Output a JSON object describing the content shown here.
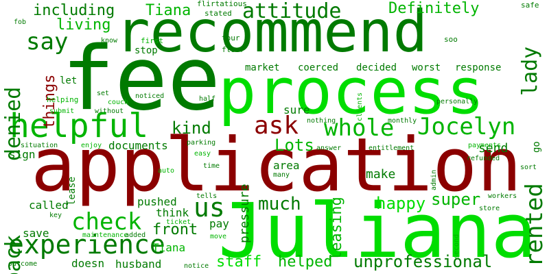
{
  "colors": {
    "background": "#ffffff",
    "dark_red": "#8b0000",
    "dark_green": "#007a00",
    "green": "#00b400",
    "bright_green": "#00dd00"
  },
  "words": [
    {
      "text": "fee",
      "color": "#007a00"
    },
    {
      "text": "application",
      "color": "#8b0000"
    },
    {
      "text": "Juliana",
      "color": "#00dd00"
    },
    {
      "text": "process",
      "color": "#00dd00"
    },
    {
      "text": "recommend",
      "color": "#007a00"
    },
    {
      "text": "helpful",
      "color": "#00b400"
    },
    {
      "text": "experience",
      "color": "#007a00"
    },
    {
      "text": "Jocelyn",
      "color": "#00b400"
    },
    {
      "text": "whole",
      "color": "#00b400"
    },
    {
      "text": "ask",
      "color": "#8b0000"
    },
    {
      "text": "check",
      "color": "#00b400"
    },
    {
      "text": "rented",
      "color": "#007a00"
    },
    {
      "text": "us",
      "color": "#007a00"
    },
    {
      "text": "denied",
      "color": "#007a00"
    },
    {
      "text": "back",
      "color": "#007a00"
    },
    {
      "text": "say",
      "color": "#007a00"
    },
    {
      "text": "attitude",
      "color": "#007a00"
    },
    {
      "text": "lady",
      "color": "#007a00"
    },
    {
      "text": "unprofessional",
      "color": "#007a00"
    },
    {
      "text": "Definitely",
      "color": "#00b400"
    },
    {
      "text": "including",
      "color": "#007a00"
    },
    {
      "text": "Tiana",
      "color": "#00b400"
    },
    {
      "text": "living",
      "color": "#00b400"
    },
    {
      "text": "kind",
      "color": "#007a00"
    },
    {
      "text": "Lots",
      "color": "#00b400"
    },
    {
      "text": "much",
      "color": "#007a00"
    },
    {
      "text": "happy",
      "color": "#00dd00"
    },
    {
      "text": "super",
      "color": "#00b400"
    },
    {
      "text": "staff",
      "color": "#00dd00"
    },
    {
      "text": "helped",
      "color": "#00b400"
    },
    {
      "text": "front",
      "color": "#007a00"
    },
    {
      "text": "things",
      "color": "#8b0000"
    },
    {
      "text": "leasing",
      "color": "#00b400"
    },
    {
      "text": "pressure",
      "color": "#007a00"
    },
    {
      "text": "make",
      "color": "#007a00"
    },
    {
      "text": "send",
      "color": "#007a00"
    },
    {
      "text": "documents",
      "color": "#007a00"
    },
    {
      "text": "Tiana",
      "color": "#00b400"
    },
    {
      "text": "husband",
      "color": "#007a00"
    },
    {
      "text": "doesn",
      "color": "#007a00"
    },
    {
      "text": "save",
      "color": "#007a00"
    },
    {
      "text": "called",
      "color": "#007a00"
    },
    {
      "text": "pushed",
      "color": "#007a00"
    },
    {
      "text": "think",
      "color": "#007a00"
    },
    {
      "text": "pay",
      "color": "#007a00"
    },
    {
      "text": "sure",
      "color": "#007a00"
    },
    {
      "text": "area",
      "color": "#007a00"
    },
    {
      "text": "sign",
      "color": "#007a00"
    },
    {
      "text": "lease",
      "color": "#007a00"
    },
    {
      "text": "stop",
      "color": "#007a00"
    },
    {
      "text": "let",
      "color": "#007a00"
    },
    {
      "text": "market",
      "color": "#007a00"
    },
    {
      "text": "coerced",
      "color": "#007a00"
    },
    {
      "text": "decided",
      "color": "#007a00"
    },
    {
      "text": "worst",
      "color": "#007a00"
    },
    {
      "text": "response",
      "color": "#007a00"
    },
    {
      "text": "go",
      "color": "#007a00"
    },
    {
      "text": "flirtatious",
      "color": "#007a00"
    },
    {
      "text": "stated",
      "color": "#007a00"
    },
    {
      "text": "safe",
      "color": "#007a00"
    },
    {
      "text": "fob",
      "color": "#007a00"
    },
    {
      "text": "know",
      "color": "#007a00"
    },
    {
      "text": "first",
      "color": "#00b400"
    },
    {
      "text": "tour",
      "color": "#007a00"
    },
    {
      "text": "floor",
      "color": "#007a00"
    },
    {
      "text": "soo",
      "color": "#007a00"
    },
    {
      "text": "helping",
      "color": "#00b400"
    },
    {
      "text": "set",
      "color": "#007a00"
    },
    {
      "text": "noticed",
      "color": "#007a00"
    },
    {
      "text": "half",
      "color": "#007a00"
    },
    {
      "text": "submit",
      "color": "#00b400"
    },
    {
      "text": "couch",
      "color": "#00b400"
    },
    {
      "text": "without",
      "color": "#007a00"
    },
    {
      "text": "nothing",
      "color": "#007a00"
    },
    {
      "text": "monthly",
      "color": "#007a00"
    },
    {
      "text": "clients",
      "color": "#00b400"
    },
    {
      "text": "personally",
      "color": "#007a00"
    },
    {
      "text": "situation",
      "color": "#007a00"
    },
    {
      "text": "enjoy",
      "color": "#00b400"
    },
    {
      "text": "parking",
      "color": "#007a00"
    },
    {
      "text": "answer",
      "color": "#007a00"
    },
    {
      "text": "entitlement",
      "color": "#007a00"
    },
    {
      "text": "payments",
      "color": "#00b400"
    },
    {
      "text": "easy",
      "color": "#00b400"
    },
    {
      "text": "time",
      "color": "#007a00"
    },
    {
      "text": "many",
      "color": "#007a00"
    },
    {
      "text": "auto",
      "color": "#00b400"
    },
    {
      "text": "admin",
      "color": "#007a00"
    },
    {
      "text": "refunded",
      "color": "#007a00"
    },
    {
      "text": "sort",
      "color": "#007a00"
    },
    {
      "text": "workers",
      "color": "#007a00"
    },
    {
      "text": "tells",
      "color": "#007a00"
    },
    {
      "text": "key",
      "color": "#007a00"
    },
    {
      "text": "ticket",
      "color": "#00b400"
    },
    {
      "text": "store",
      "color": "#007a00"
    },
    {
      "text": "second",
      "color": "#00b400"
    },
    {
      "text": "maintenance",
      "color": "#00b400"
    },
    {
      "text": "added",
      "color": "#007a00"
    },
    {
      "text": "move",
      "color": "#00b400"
    },
    {
      "text": "outcome",
      "color": "#007a00"
    },
    {
      "text": "notice",
      "color": "#007a00"
    }
  ]
}
